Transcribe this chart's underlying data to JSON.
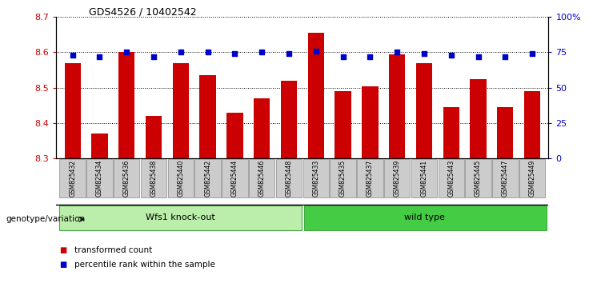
{
  "title": "GDS4526 / 10402542",
  "categories": [
    "GSM825432",
    "GSM825434",
    "GSM825436",
    "GSM825438",
    "GSM825440",
    "GSM825442",
    "GSM825444",
    "GSM825446",
    "GSM825448",
    "GSM825433",
    "GSM825435",
    "GSM825437",
    "GSM825439",
    "GSM825441",
    "GSM825443",
    "GSM825445",
    "GSM825447",
    "GSM825449"
  ],
  "bar_values": [
    8.57,
    8.37,
    8.6,
    8.42,
    8.57,
    8.535,
    8.43,
    8.47,
    8.52,
    8.655,
    8.49,
    8.505,
    8.595,
    8.57,
    8.445,
    8.525,
    8.445,
    8.49
  ],
  "percentile_values": [
    73,
    72,
    75,
    72,
    75,
    75,
    74,
    75,
    74,
    76,
    72,
    72,
    75,
    74,
    73,
    72,
    72,
    74
  ],
  "bar_color": "#cc0000",
  "percentile_color": "#0000cc",
  "ylim_left": [
    8.3,
    8.7
  ],
  "ylim_right": [
    0,
    100
  ],
  "right_ticks": [
    0,
    25,
    50,
    75,
    100
  ],
  "right_tick_labels": [
    "0",
    "25",
    "50",
    "75",
    "100%"
  ],
  "left_ticks": [
    8.3,
    8.4,
    8.5,
    8.6,
    8.7
  ],
  "group1_label": "Wfs1 knock-out",
  "group2_label": "wild type",
  "group1_count": 9,
  "group2_count": 9,
  "group1_color": "#bbeeaa",
  "group2_color": "#44cc44",
  "xlabel_left": "genotype/variation",
  "legend_items": [
    "transformed count",
    "percentile rank within the sample"
  ],
  "background_color": "#ffffff",
  "plot_bg_color": "#ffffff",
  "tick_label_bg": "#cccccc"
}
